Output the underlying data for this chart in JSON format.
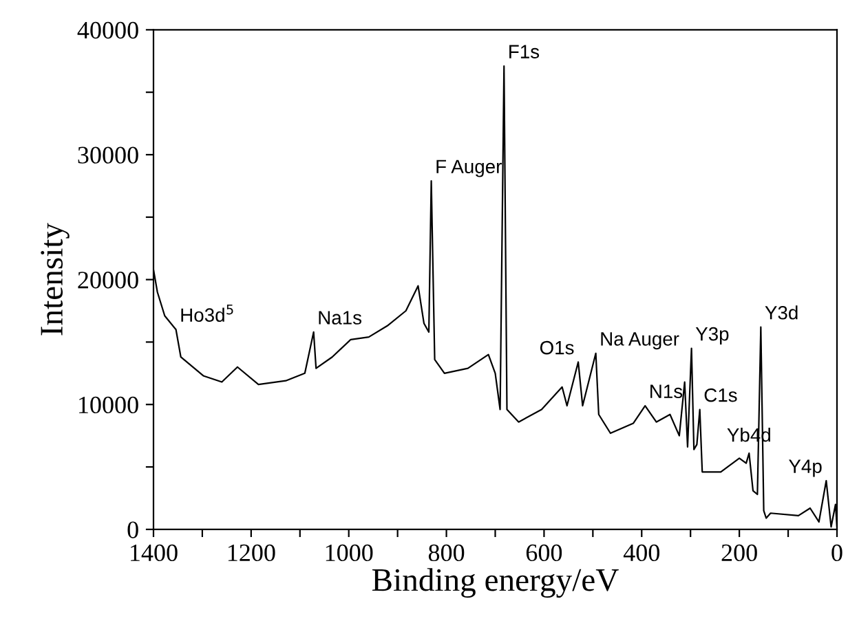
{
  "chart_data": {
    "type": "line",
    "xlabel": "Binding energy/eV",
    "ylabel": "Intensity",
    "x": [
      1400,
      1392,
      1377,
      1354,
      1344,
      1298,
      1260,
      1228,
      1185,
      1129,
      1090,
      1072,
      1067,
      1034,
      996,
      959,
      921,
      883,
      858,
      846,
      836,
      831,
      824,
      804,
      756,
      714,
      700,
      690,
      682,
      676,
      652,
      605,
      563,
      553,
      530,
      521,
      494,
      488,
      464,
      417,
      393,
      370,
      342,
      323,
      312,
      306,
      298,
      293,
      287,
      281,
      276,
      238,
      200,
      186,
      180,
      172,
      163,
      156,
      150,
      145,
      136,
      79,
      55,
      37,
      22,
      12,
      3,
      0
    ],
    "series": [
      {
        "color": "#000000",
        "values": [
          20800,
          19000,
          17100,
          16000,
          13800,
          12300,
          11800,
          13000,
          11600,
          11900,
          12500,
          15800,
          12900,
          13800,
          15200,
          15400,
          16300,
          17500,
          19500,
          16500,
          15800,
          27900,
          13600,
          12500,
          12900,
          14000,
          12500,
          9600,
          37100,
          9600,
          8600,
          9600,
          11400,
          9900,
          13400,
          9900,
          14100,
          9200,
          7700,
          8500,
          9900,
          8600,
          9200,
          7500,
          11800,
          6600,
          14500,
          6400,
          6800,
          9600,
          4600,
          4600,
          5700,
          5300,
          6100,
          3100,
          2800,
          16200,
          1500,
          900,
          1300,
          1100,
          1700,
          600,
          3900,
          200,
          2000,
          200
        ]
      }
    ],
    "xlim": [
      1400,
      0
    ],
    "ylim": [
      0,
      40000
    ],
    "xticks": [
      1400,
      {
        "value": 1300,
        "label": null
      },
      1200,
      {
        "value": 1100,
        "label": null
      },
      1000,
      {
        "value": 900,
        "label": null
      },
      800,
      {
        "value": 700,
        "label": null
      },
      600,
      {
        "value": 500,
        "label": null
      },
      400,
      {
        "value": 300,
        "label": null
      },
      200,
      {
        "value": 100,
        "label": null
      },
      0
    ],
    "yticks": [
      0,
      {
        "value": 5000,
        "label": null
      },
      10000,
      {
        "value": 15000,
        "label": null
      },
      20000,
      {
        "value": 25000,
        "label": null
      },
      30000,
      {
        "value": 35000,
        "label": null
      },
      40000
    ],
    "marker": "none",
    "line_style": "solid",
    "annotations": [
      {
        "text": "Ho3d$^{5}$",
        "x": 1354,
        "y": 16000
      },
      {
        "text": "Na1s",
        "x": 1072,
        "y": 15800
      },
      {
        "text": "F Auger",
        "x": 831,
        "y": 27900
      },
      {
        "text": "F1s",
        "x": 682,
        "y": 37100
      },
      {
        "text": "O1s",
        "x": 530,
        "y": 13400
      },
      {
        "text": "Na Auger",
        "x": 494,
        "y": 14100
      },
      {
        "text": "N1s",
        "x": 393,
        "y": 9900
      },
      {
        "text": "Y3p",
        "x": 298,
        "y": 14500
      },
      {
        "text": "C1s",
        "x": 281,
        "y": 9600
      },
      {
        "text": "Yb4d",
        "x": 180,
        "y": 6100
      },
      {
        "text": "Y3d",
        "x": 156,
        "y": 16200
      },
      {
        "text": "Y4p",
        "x": 22,
        "y": 3900
      }
    ]
  }
}
